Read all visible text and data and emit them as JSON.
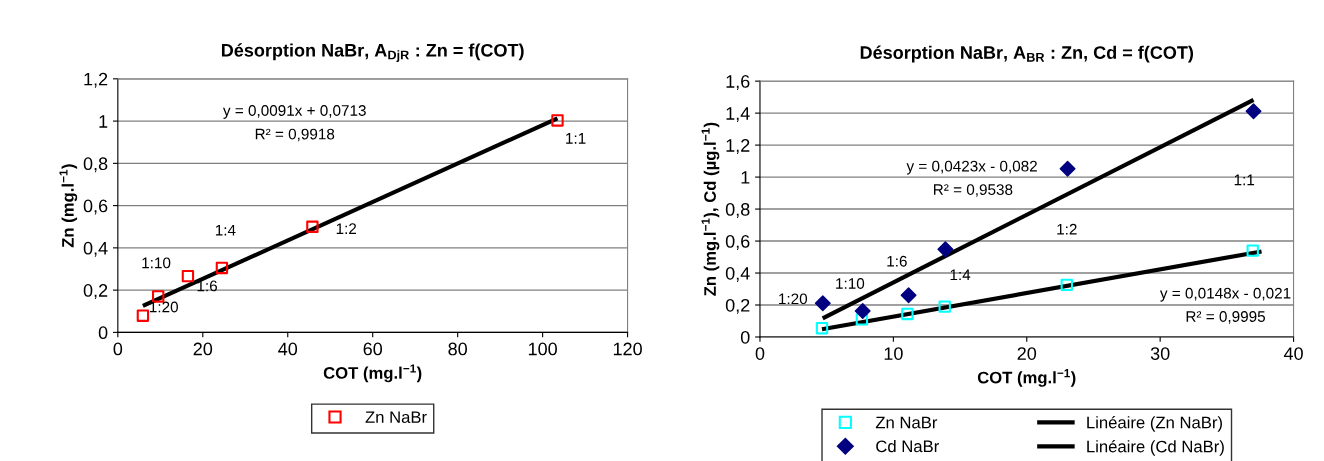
{
  "chart_data": [
    {
      "type": "scatter",
      "title": "Désorption NaBr, A$_{DjR}$ : Zn = f(COT)",
      "xlabel": "COT (mg.l$^{−1}$)",
      "ylabel": "Zn (mg.l$^{−1}$)",
      "xlim": [
        0,
        120
      ],
      "xticks": [
        0,
        20,
        40,
        60,
        80,
        100,
        120
      ],
      "ylim": [
        0,
        1.2
      ],
      "yticks": [
        0,
        {
          "value": 0.2,
          "label": "0,2"
        },
        {
          "value": 0.4,
          "label": "0,4"
        },
        {
          "value": 0.6,
          "label": "0,6"
        },
        {
          "value": 0.8,
          "label": "0,8"
        },
        1,
        {
          "value": 1.2,
          "label": "1,2"
        }
      ],
      "grid": "y",
      "legend": "bottom",
      "series": [
        {
          "name": "Zn NaBr",
          "marker": "square",
          "color": "#ff0000",
          "x": [
            5.9,
            9.5,
            16.5,
            24.5,
            45.8,
            103.5
          ],
          "values": [
            0.079,
            0.17,
            0.266,
            0.305,
            0.5,
            1.003
          ]
        },
        {
          "type": "line",
          "marker": "none",
          "color": "#000000",
          "x": [
            5.9,
            103.5
          ],
          "values": [
            0.125,
            1.013
          ]
        }
      ],
      "annotations": [
        "y = 0,0091x + 0,0713",
        "R² = 0,9918",
        "1:1",
        "1:2",
        "1:4",
        "1:10",
        "1:6",
        "1:20"
      ]
    },
    {
      "type": "scatter",
      "title": "Désorption NaBr, A$_{BR}$ : Zn, Cd = f(COT)",
      "xlabel": "COT (mg.l$^{−1}$)",
      "ylabel": "Zn (mg.l$^{−1}$), Cd (µg.l$^{−1}$)",
      "xlim": [
        0,
        40
      ],
      "xticks": [
        0,
        10,
        20,
        30,
        40
      ],
      "ylim": [
        0,
        1.6
      ],
      "yticks": [
        0,
        {
          "value": 0.2,
          "label": "0,2"
        },
        {
          "value": 0.4,
          "label": "0,4"
        },
        {
          "value": 0.6,
          "label": "0,6"
        },
        {
          "value": 0.8,
          "label": "0,8"
        },
        1,
        {
          "value": 1.2,
          "label": "1,2"
        },
        {
          "value": 1.4,
          "label": "1,4"
        },
        {
          "value": 1.6,
          "label": "1,6"
        }
      ],
      "grid": "y",
      "legend": "bottom",
      "series": [
        {
          "name": "Zn NaBr",
          "marker": "square",
          "color": "#00ffff",
          "x": [
            4.65,
            7.64,
            11.05,
            13.85,
            23.0,
            36.94
          ],
          "values": [
            0.055,
            0.11,
            0.144,
            0.19,
            0.326,
            0.54
          ]
        },
        {
          "name": "Cd NaBr",
          "marker": "diamond",
          "color": "#000080",
          "x": [
            4.71,
            7.7,
            11.14,
            13.9,
            23.06,
            37.0
          ],
          "values": [
            0.211,
            0.162,
            0.261,
            0.548,
            1.052,
            1.412
          ]
        },
        {
          "name": "Linéaire (Zn NaBr)",
          "type": "line",
          "marker": "none",
          "color": "#000000",
          "x": [
            4.65,
            37.6
          ],
          "values": [
            0.048,
            0.535
          ]
        },
        {
          "name": "Linéaire (Cd NaBr)",
          "type": "line",
          "marker": "none",
          "color": "#000000",
          "x": [
            4.7,
            37.0
          ],
          "values": [
            0.117,
            1.483
          ]
        }
      ],
      "annotations": [
        "y = 0,0423x - 0,082",
        "R² = 0,9538",
        "y = 0,0148x - 0,021",
        "R² = 0,9995",
        "1:20",
        "1:10",
        "1:6",
        "1:4",
        "1:2",
        "1:1"
      ]
    }
  ]
}
